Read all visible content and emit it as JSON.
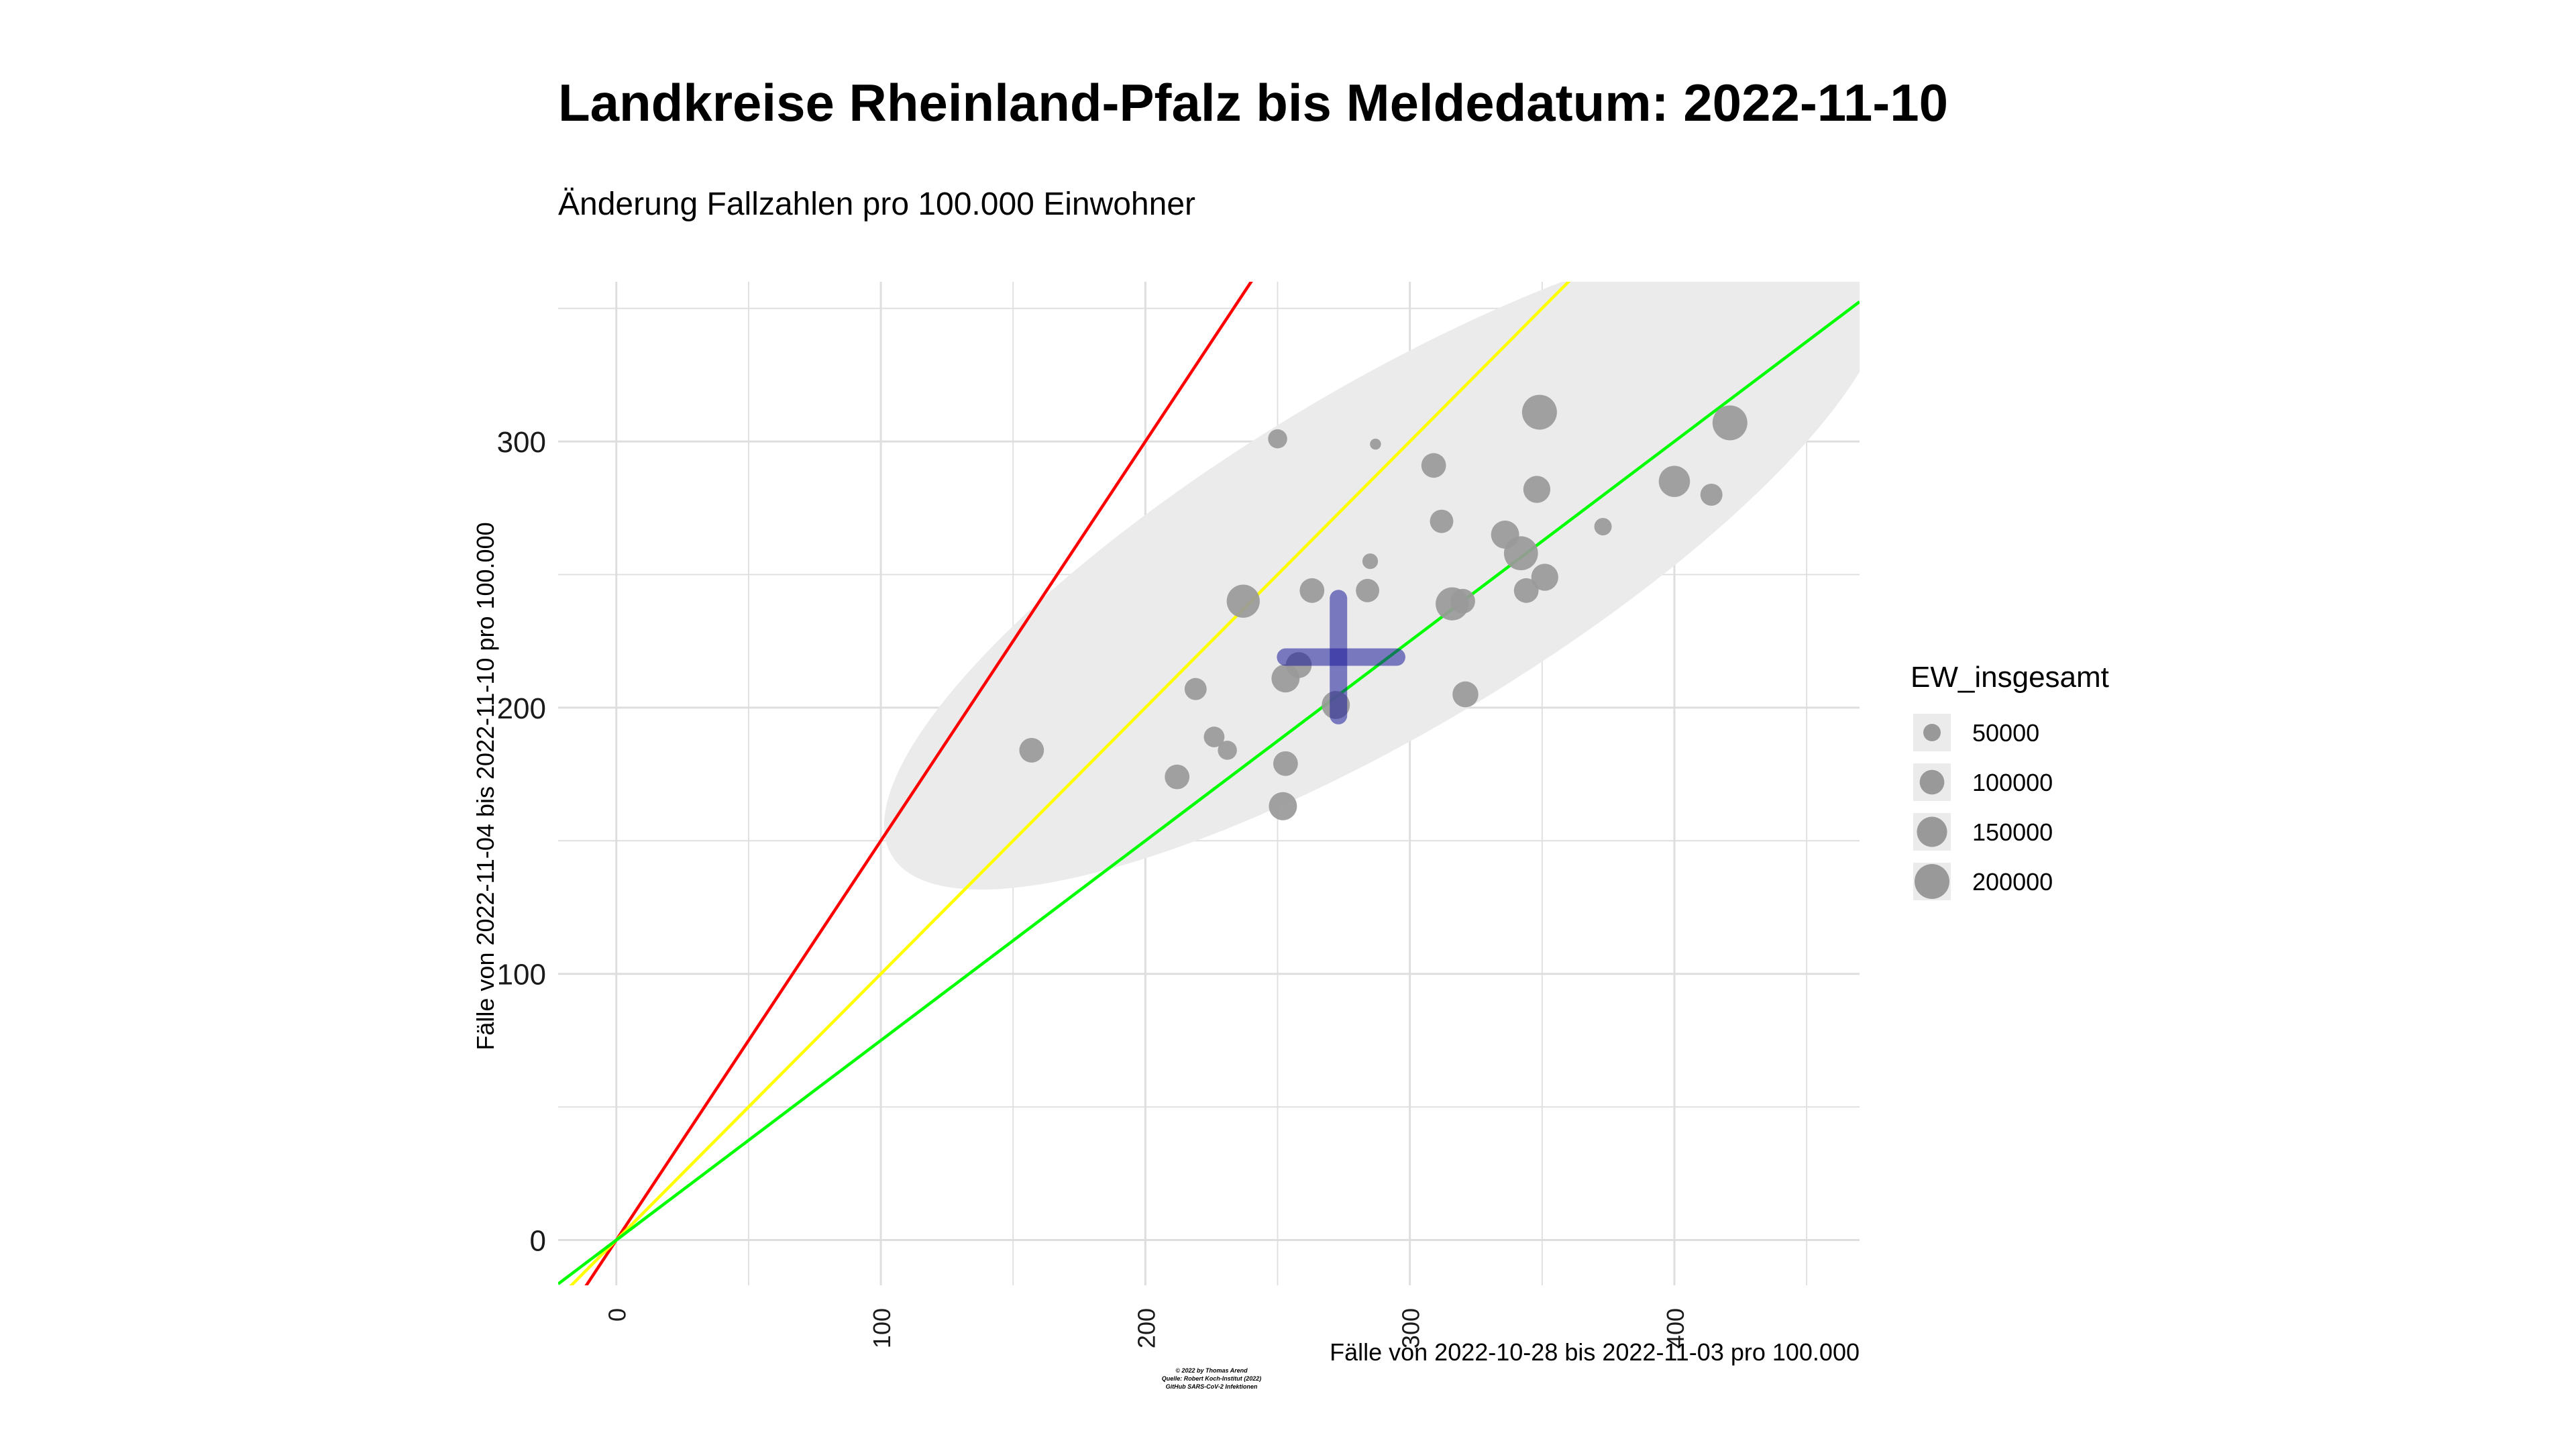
{
  "chart_data": {
    "type": "scatter",
    "title": "Landkreise Rheinland-Pfalz bis Meldedatum: 2022-11-10",
    "subtitle": "Änderung Fallzahlen pro 100.000 Einwohner",
    "xlabel": "Fälle von 2022-10-28 bis 2022-11-03 pro 100.000",
    "ylabel": "Fälle von 2022-11-04 bis 2022-11-10 pro 100.000",
    "xlim": [
      -22,
      470
    ],
    "ylim": [
      -17,
      360
    ],
    "x_ticks": [
      0,
      100,
      200,
      300,
      400
    ],
    "y_ticks": [
      0,
      100,
      200,
      300
    ],
    "grid": true,
    "legend": {
      "title": "EW_insgesamt",
      "position": "right",
      "entries": [
        {
          "label": "50000",
          "value": 50000
        },
        {
          "label": "100000",
          "value": 100000
        },
        {
          "label": "150000",
          "value": 150000
        },
        {
          "label": "200000",
          "value": 200000
        }
      ]
    },
    "colors": {
      "points": "#999999",
      "ellipse": "#ebebeb",
      "red_line": "#ff0000",
      "yellow_line": "#ffff00",
      "green_line": "#00ff00",
      "mean_cross": "#1a1a99",
      "grid": "#dedede"
    },
    "reference_lines": [
      {
        "color": "red",
        "slope": 1.5
      },
      {
        "color": "yellow",
        "slope": 1.0
      },
      {
        "color": "green",
        "slope": 0.75
      }
    ],
    "ellipse": {
      "cx": 291,
      "cy": 256,
      "rx": 218,
      "ry": 64,
      "angle_deg": 31
    },
    "mean": {
      "x": 273,
      "y": 219,
      "x_range": [
        253,
        295
      ],
      "y_range": [
        197,
        241
      ]
    },
    "points": [
      {
        "x": 157,
        "y": 184,
        "size": 100000
      },
      {
        "x": 212,
        "y": 174,
        "size": 100000
      },
      {
        "x": 219,
        "y": 207,
        "size": 80000
      },
      {
        "x": 226,
        "y": 189,
        "size": 70000
      },
      {
        "x": 231,
        "y": 184,
        "size": 60000
      },
      {
        "x": 237,
        "y": 240,
        "size": 180000
      },
      {
        "x": 250,
        "y": 301,
        "size": 60000
      },
      {
        "x": 252,
        "y": 163,
        "size": 130000
      },
      {
        "x": 253,
        "y": 179,
        "size": 100000
      },
      {
        "x": 253,
        "y": 211,
        "size": 130000
      },
      {
        "x": 258,
        "y": 216,
        "size": 110000
      },
      {
        "x": 263,
        "y": 244,
        "size": 100000
      },
      {
        "x": 272,
        "y": 201,
        "size": 130000
      },
      {
        "x": 284,
        "y": 244,
        "size": 90000
      },
      {
        "x": 285,
        "y": 255,
        "size": 40000
      },
      {
        "x": 287,
        "y": 299,
        "size": 20000
      },
      {
        "x": 309,
        "y": 291,
        "size": 100000
      },
      {
        "x": 312,
        "y": 270,
        "size": 90000
      },
      {
        "x": 316,
        "y": 239,
        "size": 180000
      },
      {
        "x": 320,
        "y": 240,
        "size": 100000
      },
      {
        "x": 321,
        "y": 205,
        "size": 110000
      },
      {
        "x": 336,
        "y": 265,
        "size": 130000
      },
      {
        "x": 342,
        "y": 258,
        "size": 190000
      },
      {
        "x": 344,
        "y": 244,
        "size": 100000
      },
      {
        "x": 348,
        "y": 282,
        "size": 120000
      },
      {
        "x": 349,
        "y": 311,
        "size": 200000
      },
      {
        "x": 351,
        "y": 249,
        "size": 120000
      },
      {
        "x": 373,
        "y": 268,
        "size": 50000
      },
      {
        "x": 400,
        "y": 285,
        "size": 160000
      },
      {
        "x": 414,
        "y": 280,
        "size": 80000
      },
      {
        "x": 421,
        "y": 307,
        "size": 200000
      }
    ]
  },
  "caption_lines": [
    "© 2022 by Thomas Arend",
    "Quelle: Robert Koch-Institut (2022)",
    "GitHub SARS-CoV-2 Infektionen"
  ]
}
